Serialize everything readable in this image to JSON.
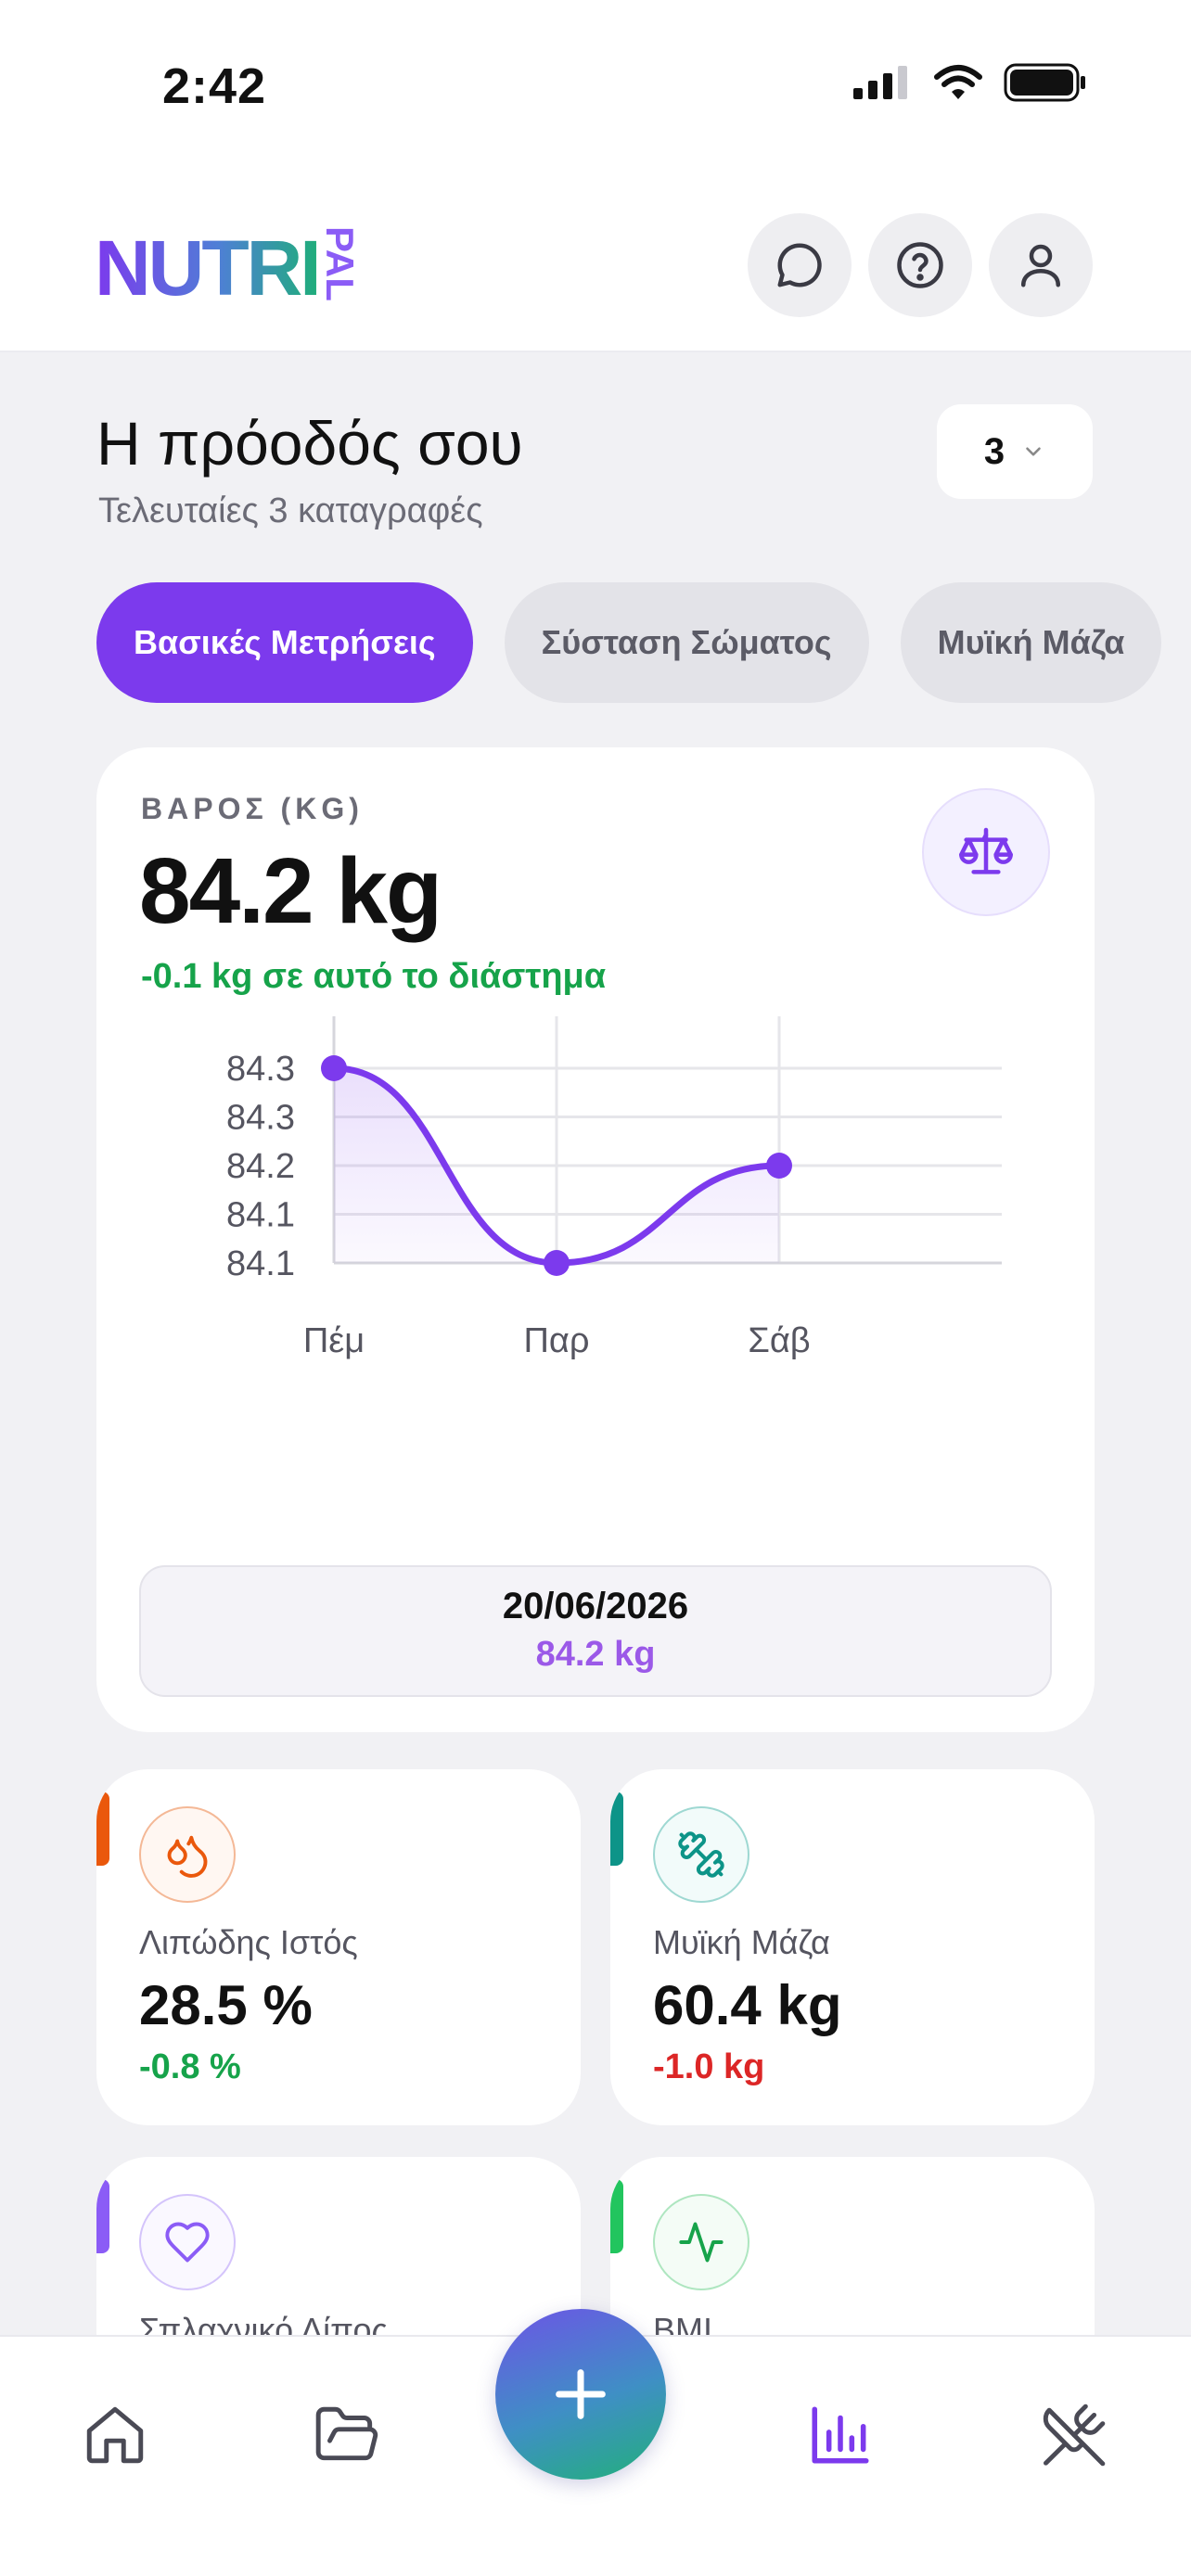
{
  "status_bar": {
    "time": "2:42"
  },
  "header": {
    "logo": {
      "text_main": "NUTRI",
      "text_side": "PAL"
    },
    "icons": [
      "chat-icon",
      "help-icon",
      "user-icon"
    ]
  },
  "page": {
    "title": "Η πρόοδός σου",
    "subtitle": "Τελευταίες 3 καταγραφές",
    "range_selector": "3"
  },
  "tabs": [
    {
      "label": "Βασικές Μετρήσεις",
      "active": true
    },
    {
      "label": "Σύσταση Σώματος",
      "active": false
    },
    {
      "label": "Μυϊκή Μάζα",
      "active": false
    }
  ],
  "weight_card": {
    "label": "ΒΑΡΟΣ (KG)",
    "value": "84.2 kg",
    "change": "-0.1 kg σε αυτό το διάστημα",
    "tooltip_date": "20/06/2026",
    "tooltip_value": "84.2 kg"
  },
  "chart_data": {
    "type": "area",
    "x": [
      "Πέμ",
      "Παρ",
      "Σάβ"
    ],
    "series": [
      {
        "values": [
          84.3,
          84.1,
          84.2
        ]
      }
    ],
    "y_tick_labels": [
      "84.3",
      "84.3",
      "84.2",
      "84.1",
      "84.1"
    ],
    "ylim": [
      84.1,
      84.3
    ],
    "grid": true,
    "color": "#7c3aed"
  },
  "metric_cards": [
    {
      "label": "Λιπώδης Ιστός",
      "value": "28.5 %",
      "change": "-0.8 %",
      "change_color": "#16a34a",
      "accent": "#ea580c",
      "icon": "droplets-icon"
    },
    {
      "label": "Μυϊκή Μάζα",
      "value": "60.4 kg",
      "change": "-1.0 kg",
      "change_color": "#dc2626",
      "accent": "#0d9488",
      "icon": "dumbbell-icon"
    },
    {
      "label": "Σπλαχνικό Λίπος",
      "accent": "#8b5cf6",
      "icon": "heart-icon"
    },
    {
      "label": "BMI",
      "accent": "#22c55e",
      "icon": "activity-icon"
    }
  ],
  "bottom_nav": {
    "items": [
      "home-icon",
      "folder-icon",
      "add-icon",
      "chart-icon",
      "utensils-icon"
    ],
    "active": "chart-icon",
    "active_color": "#7c3aed"
  }
}
